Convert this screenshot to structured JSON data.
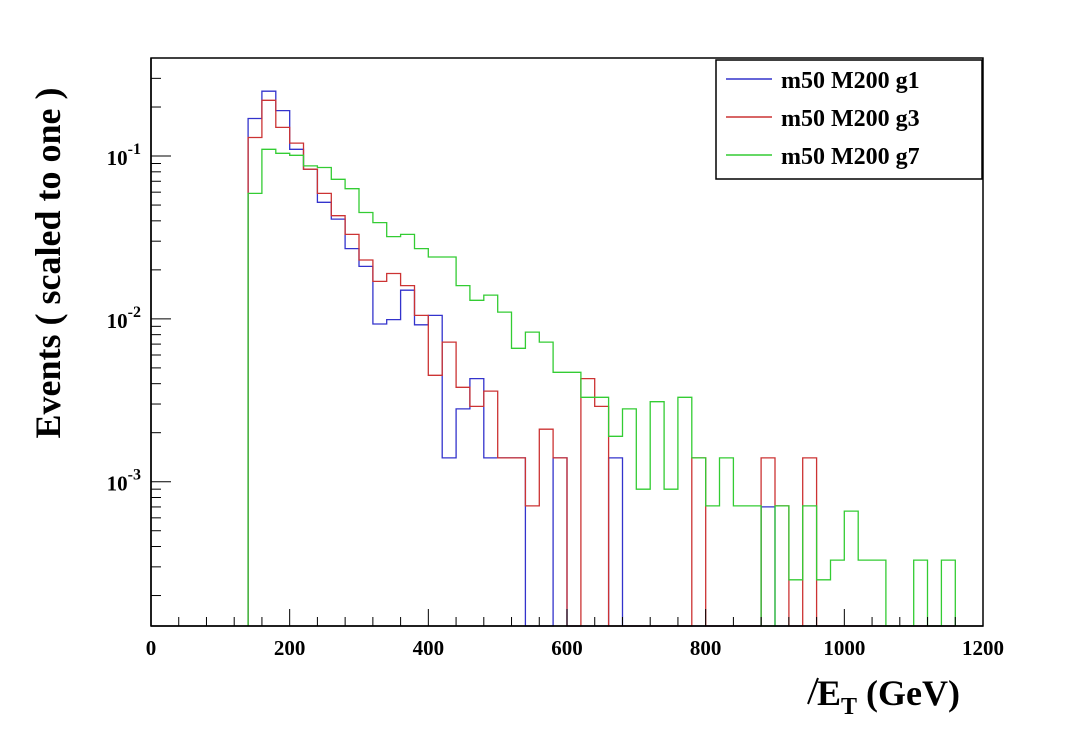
{
  "chart_data": {
    "type": "line",
    "style": "step-histogram",
    "xlabel": {
      "main": "E",
      "sub": "T",
      "unit": " (GeV)"
    },
    "ylabel": "Events  ( scaled to one )",
    "xlim": [
      0,
      1200
    ],
    "ylim": [
      0.00013,
      0.4
    ],
    "yscale": "log",
    "grid": false,
    "legend_position": "top-right",
    "x_ticks": [
      "0",
      "200",
      "400",
      "600",
      "800",
      "1000",
      "1200"
    ],
    "y_ticks": [
      {
        "base": "10",
        "exp": "-1",
        "value": 0.1
      },
      {
        "base": "10",
        "exp": "-2",
        "value": 0.01
      },
      {
        "base": "10",
        "exp": "-3",
        "value": 0.001
      }
    ],
    "bin_width": 20,
    "bin_start": 140,
    "series": [
      {
        "name": "m50 M200 g1",
        "color": "#3333cc",
        "values": [
          0.17,
          0.25,
          0.19,
          0.11,
          0.083,
          0.052,
          0.041,
          0.027,
          0.021,
          0.0093,
          0.0099,
          0.015,
          0.0092,
          0.0105,
          0.0014,
          0.0028,
          0.0043,
          0.0014,
          0.0014,
          0.0014,
          0,
          0,
          0.0014,
          0,
          0,
          0,
          0.0014,
          0,
          0,
          0,
          0,
          0,
          0,
          0,
          0,
          0,
          0,
          0.0007,
          0,
          0,
          0,
          0,
          0,
          0,
          0,
          0,
          0,
          0,
          0,
          0,
          0
        ]
      },
      {
        "name": "m50 M200 g3",
        "color": "#cc3333",
        "values": [
          0.13,
          0.22,
          0.15,
          0.12,
          0.083,
          0.059,
          0.043,
          0.033,
          0.023,
          0.017,
          0.019,
          0.016,
          0.0105,
          0.0045,
          0.0072,
          0.0038,
          0.0029,
          0.0036,
          0.0014,
          0.0014,
          0.00071,
          0.0021,
          0.0014,
          0,
          0.0043,
          0.0029,
          0,
          0,
          0,
          0,
          0,
          0,
          0.0014,
          0,
          0,
          0,
          0,
          0.0014,
          0.00071,
          0,
          0.0014,
          0,
          0,
          0,
          0,
          0,
          0,
          0,
          0,
          0,
          0
        ]
      },
      {
        "name": "m50 M200 g7",
        "color": "#33cc33",
        "values": [
          0.059,
          0.11,
          0.104,
          0.101,
          0.087,
          0.085,
          0.072,
          0.063,
          0.045,
          0.039,
          0.032,
          0.033,
          0.027,
          0.024,
          0.024,
          0.016,
          0.013,
          0.014,
          0.011,
          0.0066,
          0.0083,
          0.0072,
          0.0047,
          0.0047,
          0.0033,
          0.0033,
          0.0019,
          0.0028,
          0.0009,
          0.0031,
          0.0009,
          0.0033,
          0.0014,
          0.00071,
          0.0014,
          0.00071,
          0.00071,
          0,
          0.00071,
          0.00025,
          0.00071,
          0.00025,
          0.00033,
          0.00066,
          0.00033,
          0.00033,
          0,
          0,
          0.00033,
          0,
          0.00033
        ]
      }
    ]
  }
}
